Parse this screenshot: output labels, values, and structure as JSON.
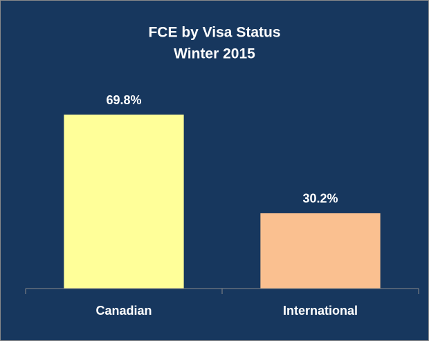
{
  "chart_data": {
    "type": "bar",
    "title": "FCE by Visa Status",
    "subtitle": "Winter 2015",
    "categories": [
      "Canadian",
      "International"
    ],
    "values": [
      69.8,
      30.2
    ],
    "value_labels": [
      "69.8%",
      "30.2%"
    ],
    "colors": [
      "#ffff99",
      "#fac090"
    ]
  }
}
